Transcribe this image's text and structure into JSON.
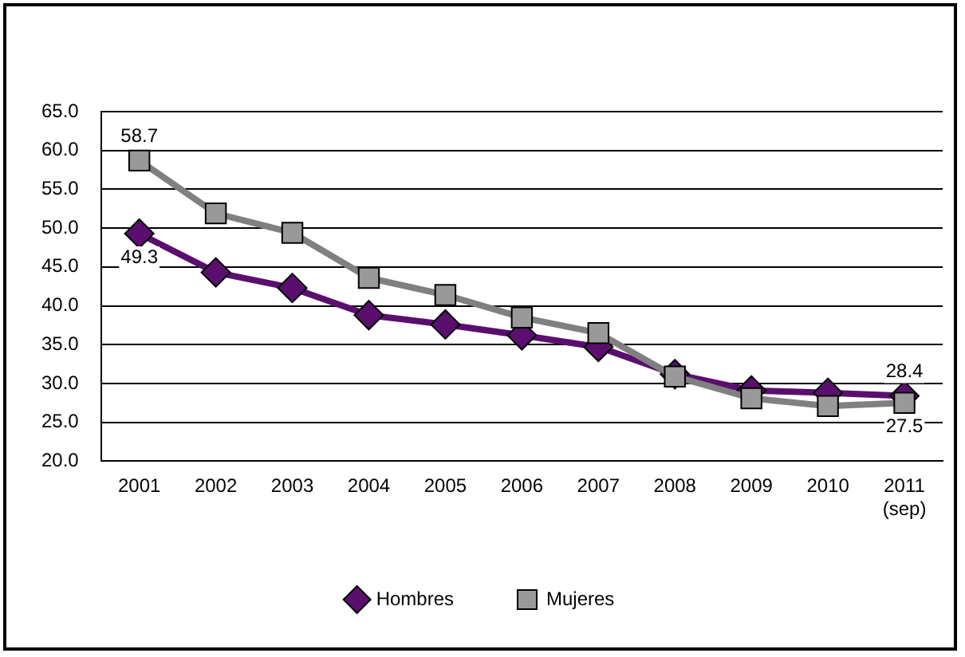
{
  "chart_data": {
    "type": "line",
    "categories": [
      "2001",
      "2002",
      "2003",
      "2004",
      "2005",
      "2006",
      "2007",
      "2008",
      "2009",
      "2010",
      "2011\n(sep)"
    ],
    "series": [
      {
        "name": "Hombres",
        "color": "#5a0f6e",
        "marker": "diamond",
        "values": [
          49.3,
          44.3,
          42.3,
          38.8,
          37.6,
          36.2,
          34.7,
          31.2,
          29.1,
          28.8,
          28.4
        ],
        "value_labels": [
          "49.3",
          null,
          null,
          null,
          null,
          null,
          null,
          null,
          null,
          null,
          "28.4"
        ]
      },
      {
        "name": "Mujeres",
        "color": "#808080",
        "marker": "square",
        "values": [
          58.7,
          51.9,
          49.4,
          43.6,
          41.4,
          38.5,
          36.5,
          30.9,
          28.1,
          27.1,
          27.5
        ],
        "value_labels": [
          "58.7",
          null,
          null,
          null,
          null,
          null,
          null,
          null,
          null,
          null,
          "27.5"
        ]
      }
    ],
    "ylim": [
      20,
      65
    ],
    "yticks": [
      {
        "value": 20,
        "label": "20.0"
      },
      {
        "value": 25,
        "label": "25.0"
      },
      {
        "value": 30,
        "label": "30.0"
      },
      {
        "value": 35,
        "label": "35.0"
      },
      {
        "value": 40,
        "label": "40.0"
      },
      {
        "value": 45,
        "label": "45.0"
      },
      {
        "value": 50,
        "label": "50.0"
      },
      {
        "value": 55,
        "label": "55.0"
      },
      {
        "value": 60,
        "label": "60.0"
      },
      {
        "value": 65,
        "label": "65.0"
      }
    ],
    "grid": "y",
    "legend": "bottom"
  }
}
